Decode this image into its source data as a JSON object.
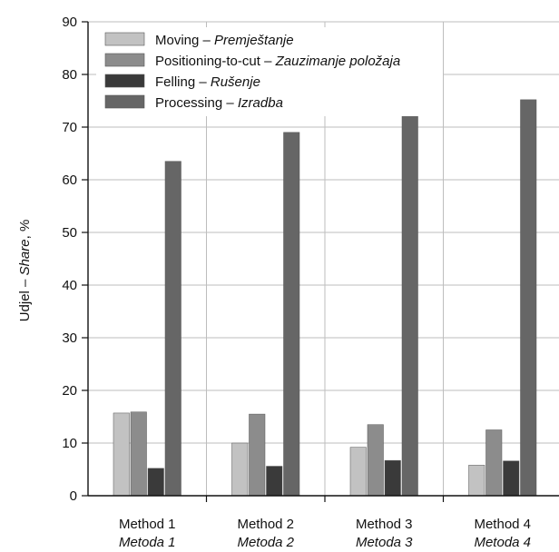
{
  "chart_data": {
    "type": "bar",
    "ylabel_en": "Udjel",
    "ylabel_sep": " – ",
    "ylabel_it": "Share",
    "ylabel_unit": ", %",
    "ylim": [
      0,
      90
    ],
    "yticks": [
      "0",
      "10",
      "20",
      "30",
      "40",
      "50",
      "60",
      "70",
      "80",
      "90"
    ],
    "categories": [
      {
        "label": "Method 1",
        "sub": "Metoda 1"
      },
      {
        "label": "Method 2",
        "sub": "Metoda 2"
      },
      {
        "label": "Method 3",
        "sub": "Metoda 3"
      },
      {
        "label": "Method 4",
        "sub": "Metoda 4"
      }
    ],
    "series": [
      {
        "name_en": "Moving",
        "sep": " – ",
        "name_it": "Premještanje",
        "color": "#c2c2c2",
        "values": [
          15.7,
          10.0,
          9.2,
          5.8
        ]
      },
      {
        "name_en": "Positioning-to-cut",
        "sep": " – ",
        "name_it": "Zauzimanje položaja",
        "color": "#8c8c8c",
        "values": [
          15.9,
          15.5,
          13.5,
          12.5
        ]
      },
      {
        "name_en": "Felling",
        "sep": " – ",
        "name_it": "Rušenje",
        "color": "#3a3a3a",
        "values": [
          5.2,
          5.6,
          6.7,
          6.6
        ]
      },
      {
        "name_en": "Processing",
        "sep": " – ",
        "name_it": "Izradba",
        "color": "#666666",
        "values": [
          63.5,
          69.0,
          77.8,
          75.2
        ]
      }
    ],
    "grid": true,
    "legend_position": "top-left"
  }
}
